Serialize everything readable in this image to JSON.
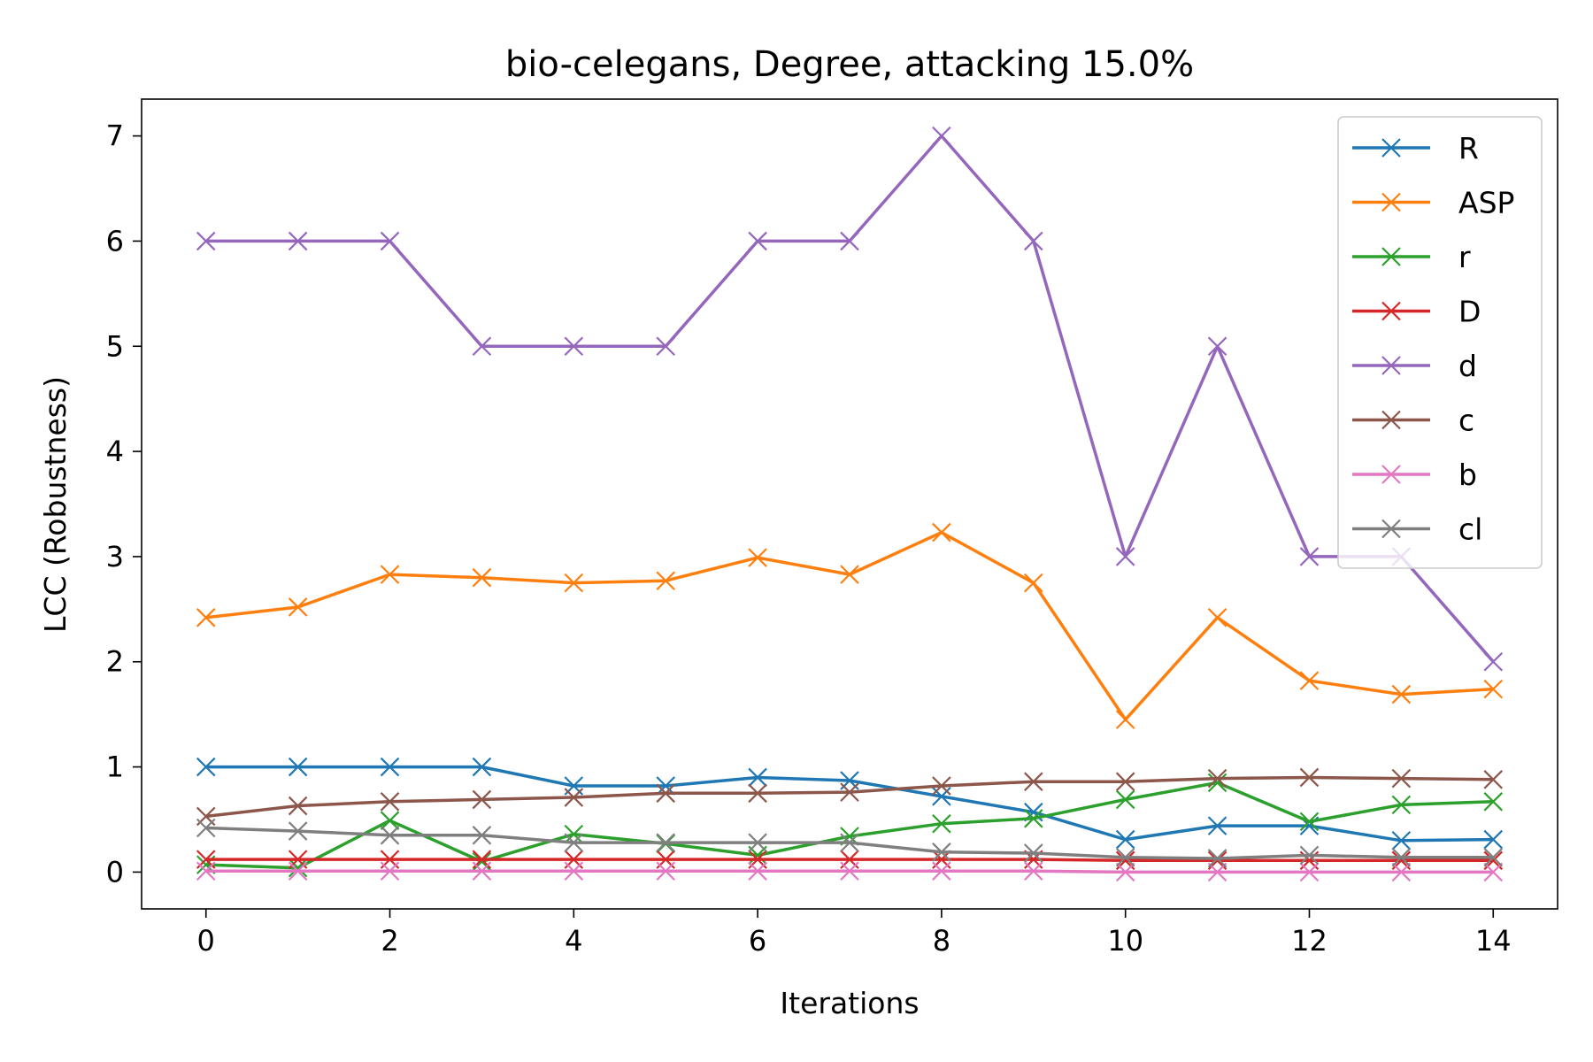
{
  "chart_data": {
    "type": "line",
    "title": "bio-celegans, Degree, attacking 15.0%",
    "xlabel": "Iterations",
    "ylabel": "LCC (Robustness)",
    "x": [
      0,
      1,
      2,
      3,
      4,
      5,
      6,
      7,
      8,
      9,
      10,
      11,
      12,
      13,
      14
    ],
    "xlim": [
      -0.7,
      14.7
    ],
    "ylim": [
      -0.35,
      7.35
    ],
    "xticks": [
      0,
      2,
      4,
      6,
      8,
      10,
      12,
      14
    ],
    "yticks": [
      0,
      1,
      2,
      3,
      4,
      5,
      6,
      7
    ],
    "grid": false,
    "legend_position": "top-right",
    "marker": "x",
    "series": [
      {
        "name": "R",
        "color": "#1f77b4",
        "values": [
          1.0,
          1.0,
          1.0,
          1.0,
          0.82,
          0.82,
          0.9,
          0.87,
          0.72,
          0.57,
          0.31,
          0.44,
          0.44,
          0.3,
          0.31
        ]
      },
      {
        "name": "ASP",
        "color": "#ff7f0e",
        "values": [
          2.42,
          2.52,
          2.83,
          2.8,
          2.75,
          2.77,
          2.99,
          2.83,
          3.23,
          2.75,
          1.45,
          2.42,
          1.82,
          1.69,
          1.74
        ]
      },
      {
        "name": "r",
        "color": "#2ca02c",
        "values": [
          0.07,
          0.04,
          0.49,
          0.1,
          0.36,
          0.27,
          0.16,
          0.34,
          0.46,
          0.51,
          0.69,
          0.85,
          0.48,
          0.64,
          0.67
        ]
      },
      {
        "name": "D",
        "color": "#d62728",
        "values": [
          0.12,
          0.12,
          0.12,
          0.12,
          0.12,
          0.12,
          0.12,
          0.12,
          0.12,
          0.12,
          0.11,
          0.11,
          0.11,
          0.11,
          0.11
        ]
      },
      {
        "name": "d",
        "color": "#9467bd",
        "values": [
          6,
          6,
          6,
          5,
          5,
          5,
          6,
          6,
          7,
          6,
          3,
          5,
          3,
          3,
          2
        ]
      },
      {
        "name": "c",
        "color": "#8c564b",
        "values": [
          0.53,
          0.63,
          0.67,
          0.69,
          0.71,
          0.75,
          0.75,
          0.76,
          0.82,
          0.86,
          0.86,
          0.89,
          0.9,
          0.89,
          0.88
        ]
      },
      {
        "name": "b",
        "color": "#e377c2",
        "values": [
          0.01,
          0.01,
          0.01,
          0.01,
          0.01,
          0.01,
          0.01,
          0.01,
          0.01,
          0.01,
          0.0,
          0.0,
          0.0,
          0.0,
          0.0
        ]
      },
      {
        "name": "cl",
        "color": "#7f7f7f",
        "values": [
          0.42,
          0.39,
          0.35,
          0.35,
          0.28,
          0.28,
          0.28,
          0.28,
          0.19,
          0.18,
          0.14,
          0.13,
          0.16,
          0.14,
          0.14
        ]
      }
    ]
  }
}
